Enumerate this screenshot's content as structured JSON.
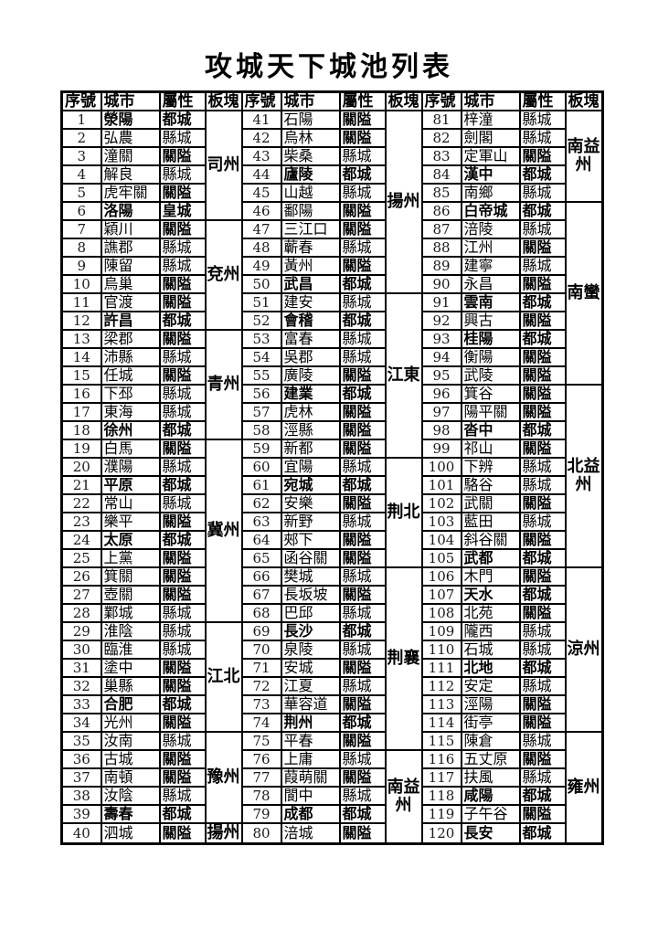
{
  "title": "攻城天下城池列表",
  "headers": [
    "序號",
    "城市",
    "屬性",
    "板塊"
  ],
  "attribute_types": {
    "capital": "都城",
    "imperial": "皇城",
    "pass": "關隘",
    "county": "縣城"
  },
  "groups": [
    {
      "regions": [
        {
          "name": "司州",
          "span": 6
        },
        {
          "name": "兗州",
          "span": 6
        },
        {
          "name": "青州",
          "span": 6
        },
        {
          "name": "冀州",
          "span": 10
        },
        {
          "name": "江北",
          "span": 6
        },
        {
          "name": "豫州",
          "span": 5
        },
        {
          "name": "揚州",
          "span": 1
        }
      ],
      "rows": [
        [
          "1",
          "滎陽",
          "都城"
        ],
        [
          "2",
          "弘農",
          "縣城"
        ],
        [
          "3",
          "潼關",
          "關隘"
        ],
        [
          "4",
          "解良",
          "縣城"
        ],
        [
          "5",
          "虎牢關",
          "關隘"
        ],
        [
          "6",
          "洛陽",
          "皇城"
        ],
        [
          "7",
          "穎川",
          "關隘"
        ],
        [
          "8",
          "譙郡",
          "縣城"
        ],
        [
          "9",
          "陳留",
          "縣城"
        ],
        [
          "10",
          "烏巢",
          "關隘"
        ],
        [
          "11",
          "官渡",
          "關隘"
        ],
        [
          "12",
          "許昌",
          "都城"
        ],
        [
          "13",
          "梁郡",
          "關隘"
        ],
        [
          "14",
          "沛縣",
          "縣城"
        ],
        [
          "15",
          "任城",
          "關隘"
        ],
        [
          "16",
          "下邳",
          "縣城"
        ],
        [
          "17",
          "東海",
          "縣城"
        ],
        [
          "18",
          "徐州",
          "都城"
        ],
        [
          "19",
          "白馬",
          "關隘"
        ],
        [
          "20",
          "濮陽",
          "縣城"
        ],
        [
          "21",
          "平原",
          "都城"
        ],
        [
          "22",
          "常山",
          "縣城"
        ],
        [
          "23",
          "樂平",
          "關隘"
        ],
        [
          "24",
          "太原",
          "都城"
        ],
        [
          "25",
          "上黨",
          "關隘"
        ],
        [
          "26",
          "箕關",
          "關隘"
        ],
        [
          "27",
          "壺關",
          "關隘"
        ],
        [
          "28",
          "鄴城",
          "縣城"
        ],
        [
          "29",
          "淮陰",
          "縣城"
        ],
        [
          "30",
          "臨淮",
          "縣城"
        ],
        [
          "31",
          "塗中",
          "關隘"
        ],
        [
          "32",
          "巢縣",
          "關隘"
        ],
        [
          "33",
          "合肥",
          "都城"
        ],
        [
          "34",
          "光州",
          "關隘"
        ],
        [
          "35",
          "汝南",
          "縣城"
        ],
        [
          "36",
          "古城",
          "關隘"
        ],
        [
          "37",
          "南頓",
          "關隘"
        ],
        [
          "38",
          "汝陰",
          "縣城"
        ],
        [
          "39",
          "壽春",
          "都城"
        ],
        [
          "40",
          "泗城",
          "關隘"
        ]
      ]
    },
    {
      "regions": [
        {
          "name": "揚州",
          "span": 10
        },
        {
          "name": "江東",
          "span": 9
        },
        {
          "name": "荆北",
          "span": 6
        },
        {
          "name": "荆襄",
          "span": 10
        },
        {
          "name": "南益州",
          "span": 5
        }
      ],
      "rows": [
        [
          "41",
          "石陽",
          "關隘"
        ],
        [
          "42",
          "烏林",
          "關隘"
        ],
        [
          "43",
          "柴桑",
          "縣城"
        ],
        [
          "44",
          "廬陵",
          "都城"
        ],
        [
          "45",
          "山越",
          "縣城"
        ],
        [
          "46",
          "鄱陽",
          "關隘"
        ],
        [
          "47",
          "三江口",
          "關隘"
        ],
        [
          "48",
          "蘄春",
          "縣城"
        ],
        [
          "49",
          "黃州",
          "關隘"
        ],
        [
          "50",
          "武昌",
          "都城"
        ],
        [
          "51",
          "建安",
          "縣城"
        ],
        [
          "52",
          "會稽",
          "都城"
        ],
        [
          "53",
          "富春",
          "縣城"
        ],
        [
          "54",
          "吳郡",
          "縣城"
        ],
        [
          "55",
          "廣陵",
          "關隘"
        ],
        [
          "56",
          "建業",
          "都城"
        ],
        [
          "57",
          "虎林",
          "關隘"
        ],
        [
          "58",
          "涇縣",
          "關隘"
        ],
        [
          "59",
          "新都",
          "關隘"
        ],
        [
          "60",
          "宜陽",
          "縣城"
        ],
        [
          "61",
          "宛城",
          "都城"
        ],
        [
          "62",
          "安樂",
          "關隘"
        ],
        [
          "63",
          "新野",
          "縣城"
        ],
        [
          "64",
          "郟下",
          "關隘"
        ],
        [
          "65",
          "函谷關",
          "關隘"
        ],
        [
          "66",
          "樊城",
          "縣城"
        ],
        [
          "67",
          "長坂坡",
          "關隘"
        ],
        [
          "68",
          "巴邱",
          "縣城"
        ],
        [
          "69",
          "長沙",
          "都城"
        ],
        [
          "70",
          "泉陵",
          "縣城"
        ],
        [
          "71",
          "安城",
          "關隘"
        ],
        [
          "72",
          "江夏",
          "縣城"
        ],
        [
          "73",
          "華容道",
          "關隘"
        ],
        [
          "74",
          "荆州",
          "都城"
        ],
        [
          "75",
          "平春",
          "關隘"
        ],
        [
          "76",
          "上庸",
          "縣城"
        ],
        [
          "77",
          "葭萌關",
          "關隘"
        ],
        [
          "78",
          "閬中",
          "縣城"
        ],
        [
          "79",
          "成都",
          "都城"
        ],
        [
          "80",
          "涪城",
          "關隘"
        ]
      ]
    },
    {
      "regions": [
        {
          "name": "南益州",
          "span": 5
        },
        {
          "name": "南蠻",
          "span": 10
        },
        {
          "name": "北益州",
          "span": 10
        },
        {
          "name": "涼州",
          "span": 9
        },
        {
          "name": "雍州",
          "span": 6
        }
      ],
      "rows": [
        [
          "81",
          "梓潼",
          "縣城"
        ],
        [
          "82",
          "劍閣",
          "縣城"
        ],
        [
          "83",
          "定軍山",
          "關隘"
        ],
        [
          "84",
          "漢中",
          "都城"
        ],
        [
          "85",
          "南鄉",
          "縣城"
        ],
        [
          "86",
          "白帝城",
          "都城"
        ],
        [
          "87",
          "涪陵",
          "縣城"
        ],
        [
          "88",
          "江州",
          "關隘"
        ],
        [
          "89",
          "建寧",
          "縣城"
        ],
        [
          "90",
          "永昌",
          "關隘"
        ],
        [
          "91",
          "雲南",
          "都城"
        ],
        [
          "92",
          "興古",
          "關隘"
        ],
        [
          "93",
          "桂陽",
          "都城"
        ],
        [
          "94",
          "衡陽",
          "關隘"
        ],
        [
          "95",
          "武陵",
          "關隘"
        ],
        [
          "96",
          "箕谷",
          "關隘"
        ],
        [
          "97",
          "陽平關",
          "關隘"
        ],
        [
          "98",
          "沓中",
          "都城"
        ],
        [
          "99",
          "祁山",
          "關隘"
        ],
        [
          "100",
          "下辨",
          "縣城"
        ],
        [
          "101",
          "駱谷",
          "縣城"
        ],
        [
          "102",
          "武關",
          "關隘"
        ],
        [
          "103",
          "藍田",
          "縣城"
        ],
        [
          "104",
          "斜谷關",
          "關隘"
        ],
        [
          "105",
          "武都",
          "都城"
        ],
        [
          "106",
          "木門",
          "關隘"
        ],
        [
          "107",
          "天水",
          "都城"
        ],
        [
          "108",
          "北苑",
          "關隘"
        ],
        [
          "109",
          "隴西",
          "縣城"
        ],
        [
          "110",
          "石城",
          "縣城"
        ],
        [
          "111",
          "北地",
          "都城"
        ],
        [
          "112",
          "安定",
          "縣城"
        ],
        [
          "113",
          "涇陽",
          "關隘"
        ],
        [
          "114",
          "街亭",
          "關隘"
        ],
        [
          "115",
          "陳倉",
          "縣城"
        ],
        [
          "116",
          "五丈原",
          "關隘"
        ],
        [
          "117",
          "扶風",
          "縣城"
        ],
        [
          "118",
          "咸陽",
          "都城"
        ],
        [
          "119",
          "子午谷",
          "關隘"
        ],
        [
          "120",
          "長安",
          "都城"
        ]
      ]
    }
  ]
}
